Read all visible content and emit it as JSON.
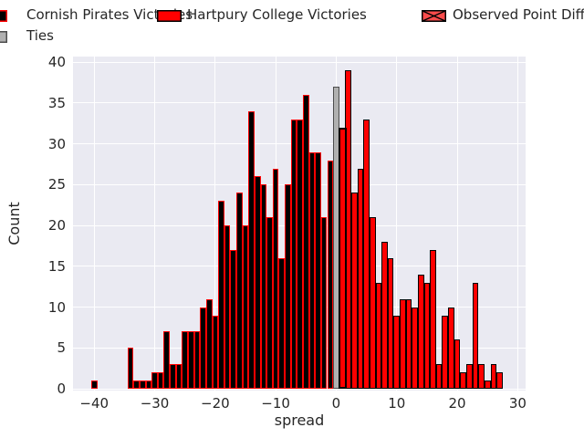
{
  "legend": {
    "items": [
      {
        "label": "Cornish Pirates Victories",
        "fill": "#000000",
        "edge": "#ff0000",
        "hatch": false
      },
      {
        "label": "Hartpury College Victories",
        "fill": "#ff0000",
        "edge": "#000000",
        "hatch": false
      },
      {
        "label": "Observed Point Difference",
        "fill": "#fa4b4b",
        "edge": "#000000",
        "hatch": true
      },
      {
        "label": "Ties",
        "fill": "#b0b0b0",
        "edge": "#4d4d4d",
        "hatch": false
      }
    ]
  },
  "chart_data": {
    "type": "bar",
    "title": "",
    "xlabel": "spread",
    "ylabel": "Count",
    "xlim": [
      -43.5,
      31.3
    ],
    "ylim": [
      0,
      40.7
    ],
    "grid": true,
    "plot_bg": "#eaeaf2",
    "grid_color": "#ffffff",
    "bin_width": 1,
    "x_ticks": [
      {
        "value": -40,
        "label": "−40"
      },
      {
        "value": -30,
        "label": "−30"
      },
      {
        "value": -20,
        "label": "−20"
      },
      {
        "value": -10,
        "label": "−10"
      },
      {
        "value": 0,
        "label": "0"
      },
      {
        "value": 10,
        "label": "10"
      },
      {
        "value": 20,
        "label": "20"
      },
      {
        "value": 30,
        "label": "30"
      }
    ],
    "y_ticks": [
      {
        "value": 0,
        "label": "0"
      },
      {
        "value": 5,
        "label": "5"
      },
      {
        "value": 10,
        "label": "10"
      },
      {
        "value": 15,
        "label": "15"
      },
      {
        "value": 20,
        "label": "20"
      },
      {
        "value": 25,
        "label": "25"
      },
      {
        "value": 30,
        "label": "30"
      },
      {
        "value": 35,
        "label": "35"
      },
      {
        "value": 40,
        "label": "40"
      }
    ],
    "series": [
      {
        "name": "Cornish Pirates Victories",
        "fill": "#000000",
        "edge": "#ff0000",
        "hatch": false,
        "bins": [
          [
            -40,
            1
          ],
          [
            -34,
            5
          ],
          [
            -33,
            1
          ],
          [
            -32,
            1
          ],
          [
            -31,
            1
          ],
          [
            -30,
            2
          ],
          [
            -29,
            2
          ],
          [
            -28,
            7
          ],
          [
            -27,
            3
          ],
          [
            -26,
            3
          ],
          [
            -25,
            7
          ],
          [
            -24,
            7
          ],
          [
            -23,
            7
          ],
          [
            -22,
            10
          ],
          [
            -21,
            11
          ],
          [
            -20,
            9
          ],
          [
            -19,
            23
          ],
          [
            -18,
            20
          ],
          [
            -17,
            17
          ],
          [
            -16,
            24
          ],
          [
            -15,
            20
          ],
          [
            -14,
            34
          ],
          [
            -13,
            26
          ],
          [
            -12,
            25
          ],
          [
            -11,
            21
          ],
          [
            -10,
            27
          ],
          [
            -9,
            16
          ],
          [
            -8,
            25
          ],
          [
            -7,
            33
          ],
          [
            -6,
            33
          ],
          [
            -5,
            36
          ],
          [
            -4,
            29
          ],
          [
            -3,
            29
          ],
          [
            -2,
            21
          ],
          [
            -1,
            28
          ]
        ]
      },
      {
        "name": "Hartpury College Victories",
        "fill": "#ff0000",
        "edge": "#000000",
        "hatch": false,
        "bins": [
          [
            2,
            39
          ],
          [
            3,
            24
          ],
          [
            4,
            27
          ],
          [
            5,
            33
          ],
          [
            6,
            21
          ],
          [
            7,
            13
          ],
          [
            8,
            18
          ],
          [
            9,
            16
          ],
          [
            10,
            9
          ],
          [
            11,
            11
          ],
          [
            12,
            11
          ],
          [
            13,
            10
          ],
          [
            14,
            14
          ],
          [
            15,
            13
          ],
          [
            16,
            17
          ],
          [
            17,
            3
          ],
          [
            18,
            9
          ],
          [
            19,
            10
          ],
          [
            20,
            6
          ],
          [
            21,
            2
          ],
          [
            22,
            3
          ],
          [
            23,
            13
          ],
          [
            24,
            3
          ],
          [
            25,
            1
          ],
          [
            26,
            3
          ],
          [
            27,
            2
          ]
        ]
      },
      {
        "name": "Ties",
        "fill": "#b0b0b0",
        "edge": "#4d4d4d",
        "hatch": false,
        "bins": [
          [
            0,
            37
          ]
        ]
      },
      {
        "name": "Observed Point Difference",
        "fill": "#ff0000",
        "edge": "#000000",
        "hatch": true,
        "bin_span": [
          0.45,
          1.78
        ],
        "bins": [
          [
            1,
            32
          ]
        ]
      }
    ]
  }
}
